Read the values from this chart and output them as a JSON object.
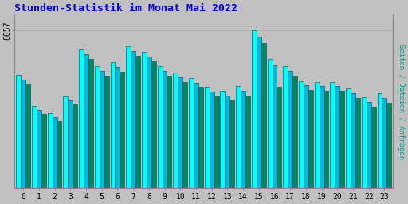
{
  "title": "Stunden-Statistik im Monat Mai 2022",
  "ylabel_right": "Seiten / Dateien / Anfragen",
  "ytick_label": "8657",
  "background_color": "#c0c0c0",
  "plot_bg_color": "#c0c0c0",
  "bar_colors": [
    "#00ffff",
    "#00bbdd",
    "#008866"
  ],
  "bar_edge_color": "#004444",
  "title_color": "#0000cc",
  "ylabel_color": "#009988",
  "hours": [
    0,
    1,
    2,
    3,
    4,
    5,
    6,
    7,
    8,
    9,
    10,
    11,
    12,
    13,
    14,
    15,
    16,
    17,
    18,
    19,
    20,
    21,
    22,
    23
  ],
  "series1": [
    0.72,
    0.52,
    0.475,
    0.58,
    0.88,
    0.775,
    0.8,
    0.9,
    0.865,
    0.775,
    0.735,
    0.7,
    0.64,
    0.615,
    0.645,
    1.0,
    0.82,
    0.775,
    0.68,
    0.675,
    0.675,
    0.63,
    0.575,
    0.6
  ],
  "series2": [
    0.69,
    0.495,
    0.45,
    0.555,
    0.85,
    0.745,
    0.77,
    0.87,
    0.835,
    0.745,
    0.705,
    0.67,
    0.61,
    0.585,
    0.615,
    0.96,
    0.78,
    0.745,
    0.65,
    0.645,
    0.645,
    0.6,
    0.545,
    0.57
  ],
  "series3": [
    0.66,
    0.47,
    0.425,
    0.53,
    0.82,
    0.715,
    0.74,
    0.84,
    0.805,
    0.715,
    0.675,
    0.64,
    0.58,
    0.555,
    0.585,
    0.92,
    0.64,
    0.715,
    0.62,
    0.615,
    0.615,
    0.57,
    0.515,
    0.54
  ],
  "figsize": [
    5.12,
    2.56
  ],
  "dpi": 100
}
